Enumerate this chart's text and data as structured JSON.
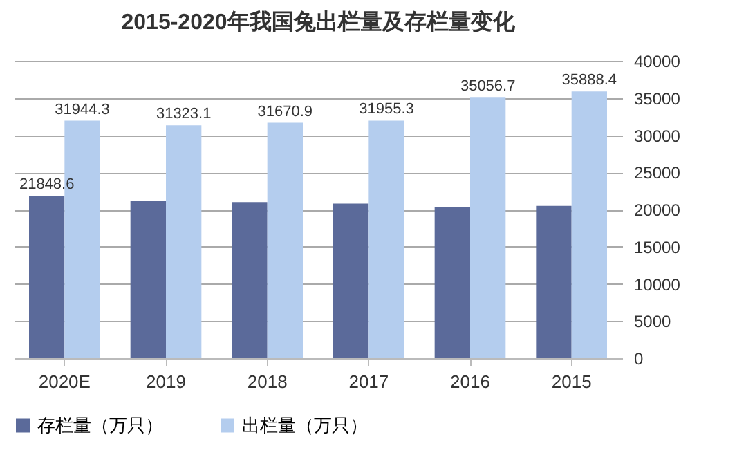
{
  "chart_data": {
    "type": "bar",
    "title": "2015-2020年我国兔出栏量及存栏量变化",
    "categories": [
      "2020E",
      "2019",
      "2018",
      "2017",
      "2016",
      "2015"
    ],
    "series": [
      {
        "name": "存栏量（万只）",
        "color": "#5b6a9a",
        "values": [
          21848.6,
          21200,
          21000,
          20800,
          20300,
          20500
        ],
        "value_labels": [
          "21848.6",
          null,
          null,
          null,
          null,
          null
        ]
      },
      {
        "name": "出栏量（万只）",
        "color": "#b4cdee",
        "values": [
          31944.3,
          31323.1,
          31670.9,
          31955.3,
          35056.7,
          35888.4
        ],
        "value_labels": [
          "31944.3",
          "31323.1",
          "31670.9",
          "31955.3",
          "35056.7",
          "35888.4"
        ]
      }
    ],
    "ylim": [
      0,
      40000
    ],
    "yticks": [
      0,
      5000,
      10000,
      15000,
      20000,
      25000,
      30000,
      35000,
      40000
    ],
    "grid": "y",
    "legend": "bottom"
  }
}
